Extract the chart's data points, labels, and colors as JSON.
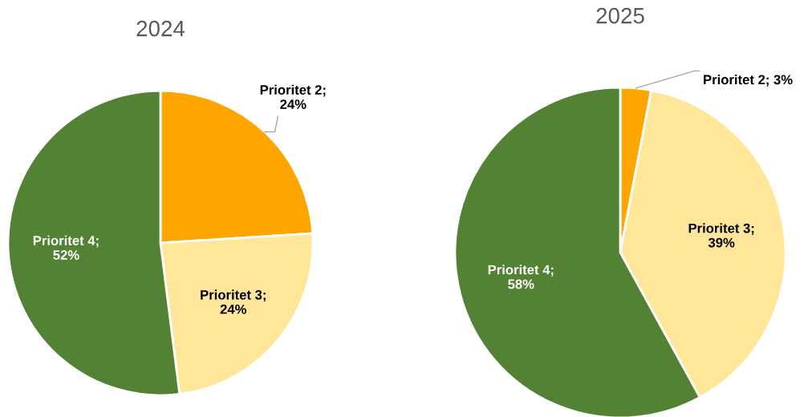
{
  "chart_data": [
    {
      "type": "pie",
      "title": "2024",
      "values": [
        24,
        24,
        52
      ],
      "colors": [
        "#ffa500",
        "#ffe699",
        "#548235"
      ],
      "value_labels": [
        "Prioritet 2;\n24%",
        "Prioritet 3;\n24%",
        "Prioritet 4;\n52%"
      ]
    },
    {
      "type": "pie",
      "title": "2025",
      "values": [
        3,
        39,
        58
      ],
      "colors": [
        "#ffa500",
        "#ffe699",
        "#548235"
      ],
      "value_labels": [
        "Prioritet 2; 3%",
        "Prioritet 3;\n39%",
        "Prioritet 4;\n58%"
      ]
    }
  ]
}
